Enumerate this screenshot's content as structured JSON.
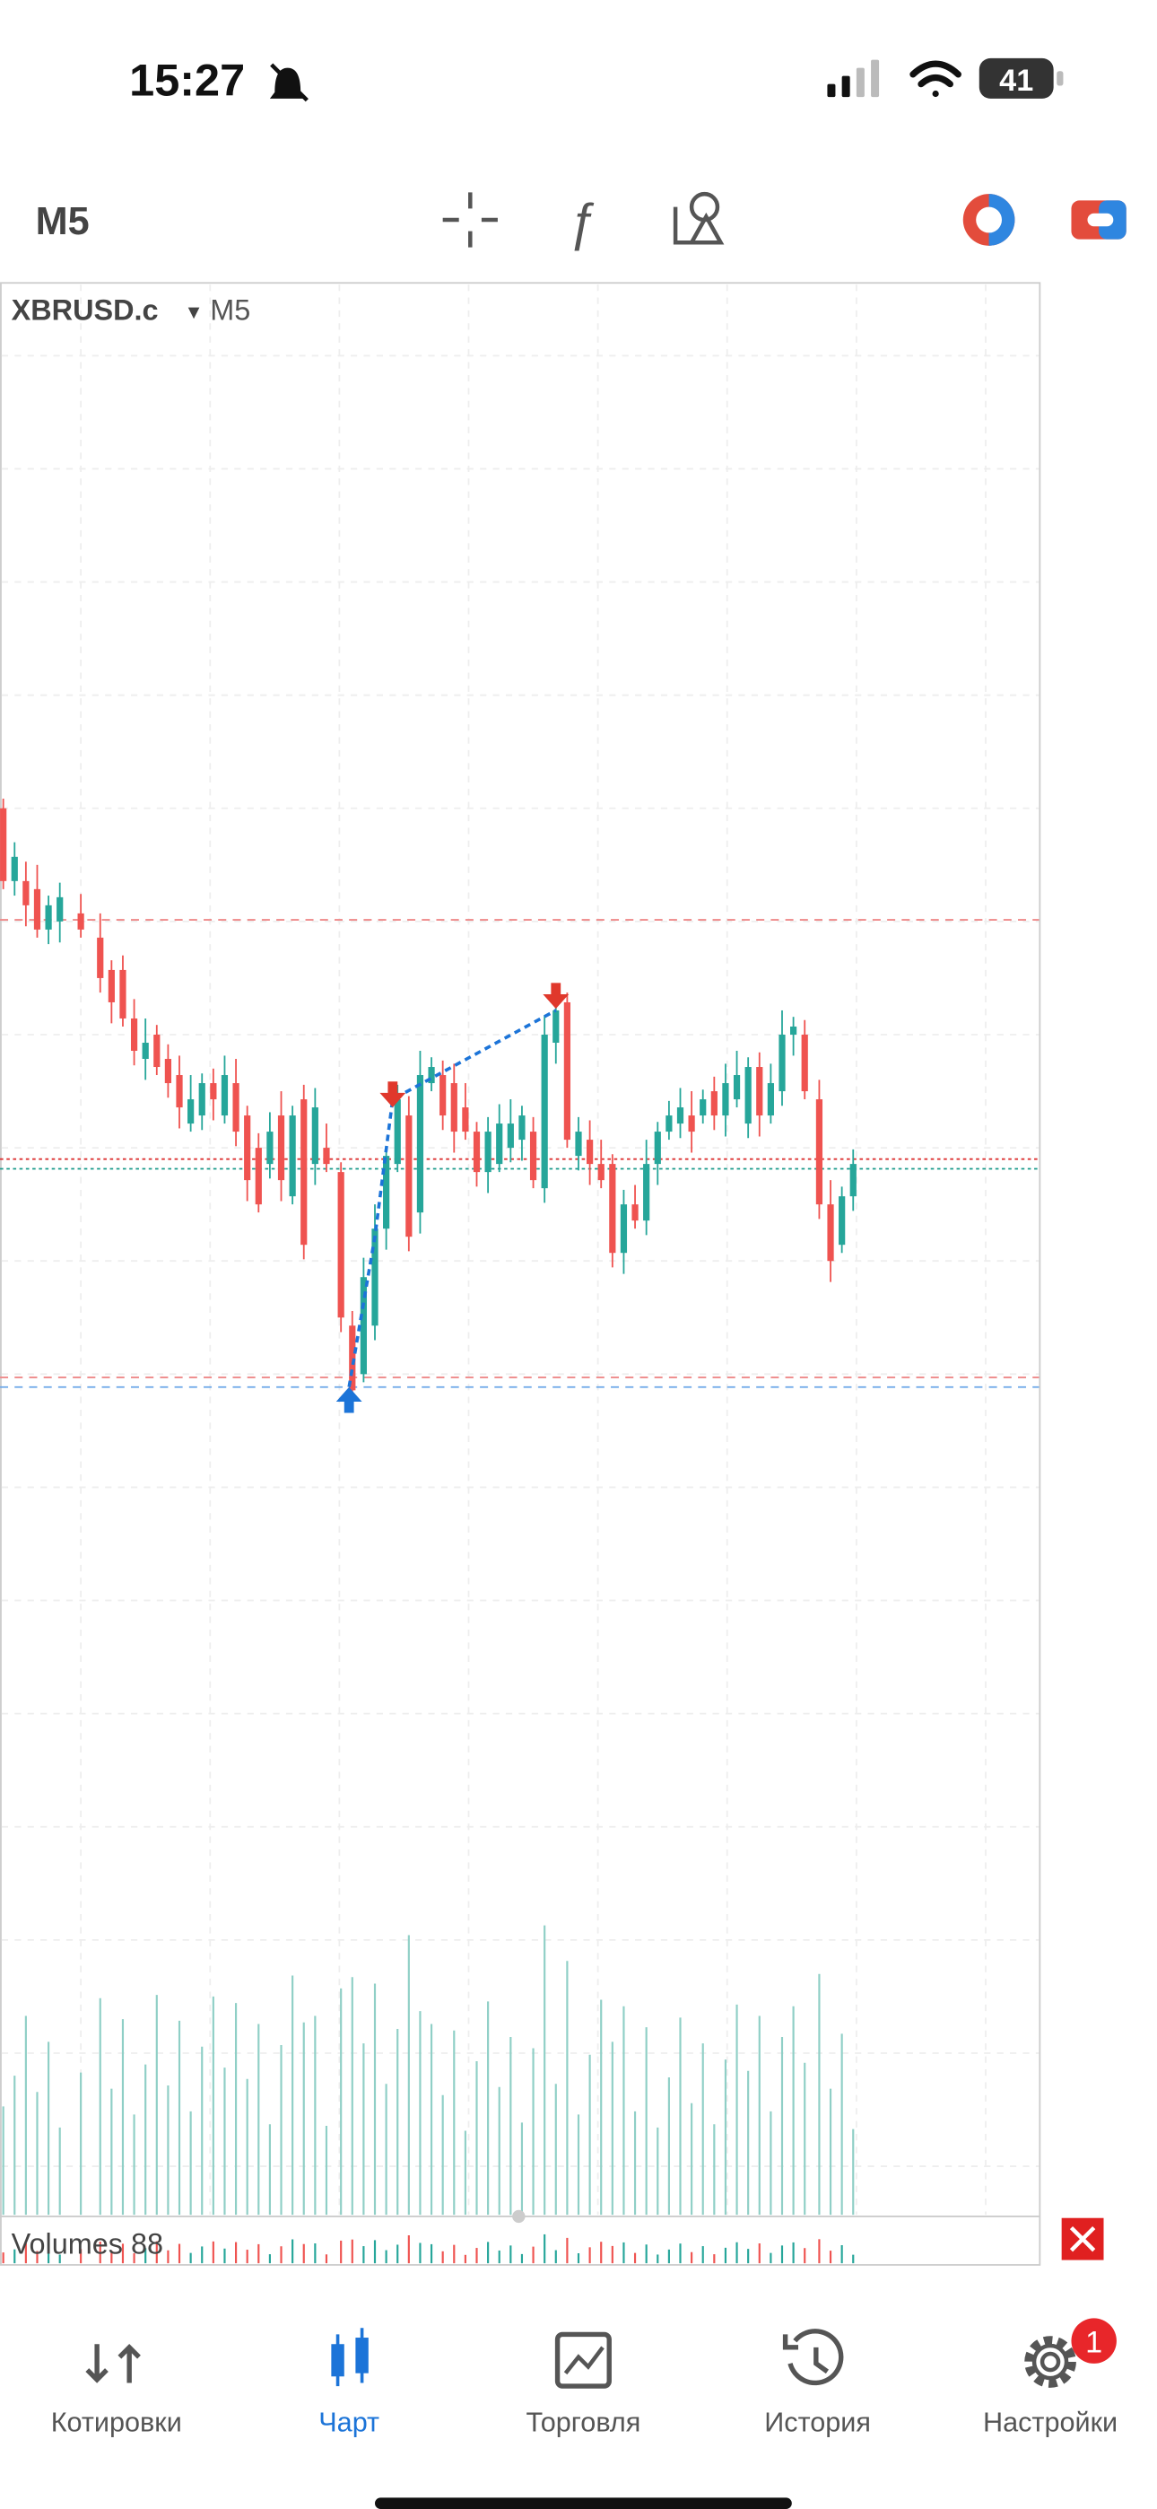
{
  "status_bar": {
    "time": "15:27",
    "battery": "41"
  },
  "toolbar": {
    "timeframe": "M5"
  },
  "chart": {
    "symbol": "XBRUSD.c",
    "timeframe": "M5",
    "indicator": "Volumes 88"
  },
  "tab_bar": {
    "tabs": [
      {
        "label": "Котировки"
      },
      {
        "label": "Чарт"
      },
      {
        "label": "Торговля"
      },
      {
        "label": "История"
      },
      {
        "label": "Настройки"
      }
    ],
    "badge": "1"
  }
}
